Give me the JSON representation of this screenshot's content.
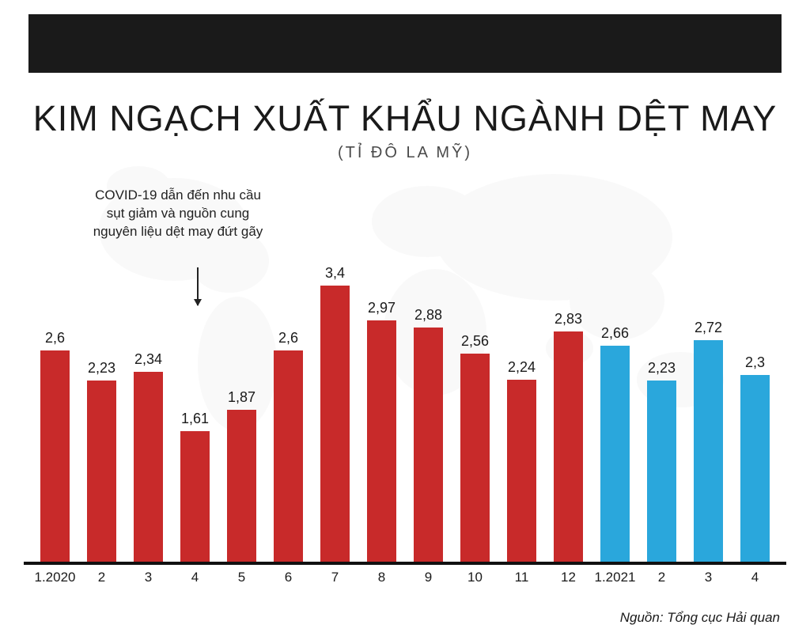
{
  "title": "KIM NGẠCH XUẤT KHẨU NGÀNH DỆT MAY",
  "subtitle": "(TỈ ĐÔ LA MỸ)",
  "annotation": "COVID-19 dẫn đến nhu cầu sụt giảm và nguồn cung nguyên liệu dệt may đứt gãy",
  "source": "Nguồn: Tổng cục Hải quan",
  "chart": {
    "type": "bar",
    "ylim": [
      0,
      3.6
    ],
    "bar_width_ratio": 0.64,
    "baseline_color": "#111111",
    "background_color": "#ffffff",
    "map_color": "#d9d9d9",
    "top_bar_color": "#1a1a1a",
    "annotation_target_index": 3,
    "value_label_fontsize": 18,
    "x_label_fontsize": 17,
    "title_fontsize": 45,
    "subtitle_fontsize": 20,
    "colors": {
      "red": "#c82a2a",
      "blue": "#2aa7dc"
    },
    "bars": [
      {
        "x": "1.2020",
        "value": 2.6,
        "label": "2,6",
        "color": "#c82a2a"
      },
      {
        "x": "2",
        "value": 2.23,
        "label": "2,23",
        "color": "#c82a2a"
      },
      {
        "x": "3",
        "value": 2.34,
        "label": "2,34",
        "color": "#c82a2a"
      },
      {
        "x": "4",
        "value": 1.61,
        "label": "1,61",
        "color": "#c82a2a"
      },
      {
        "x": "5",
        "value": 1.87,
        "label": "1,87",
        "color": "#c82a2a"
      },
      {
        "x": "6",
        "value": 2.6,
        "label": "2,6",
        "color": "#c82a2a"
      },
      {
        "x": "7",
        "value": 3.4,
        "label": "3,4",
        "color": "#c82a2a"
      },
      {
        "x": "8",
        "value": 2.97,
        "label": "2,97",
        "color": "#c82a2a"
      },
      {
        "x": "9",
        "value": 2.88,
        "label": "2,88",
        "color": "#c82a2a"
      },
      {
        "x": "10",
        "value": 2.56,
        "label": "2,56",
        "color": "#c82a2a"
      },
      {
        "x": "11",
        "value": 2.24,
        "label": "2,24",
        "color": "#c82a2a"
      },
      {
        "x": "12",
        "value": 2.83,
        "label": "2,83",
        "color": "#c82a2a"
      },
      {
        "x": "1.2021",
        "value": 2.66,
        "label": "2,66",
        "color": "#2aa7dc"
      },
      {
        "x": "2",
        "value": 2.23,
        "label": "2,23",
        "color": "#2aa7dc"
      },
      {
        "x": "3",
        "value": 2.72,
        "label": "2,72",
        "color": "#2aa7dc"
      },
      {
        "x": "4",
        "value": 2.3,
        "label": "2,3",
        "color": "#2aa7dc"
      }
    ]
  }
}
